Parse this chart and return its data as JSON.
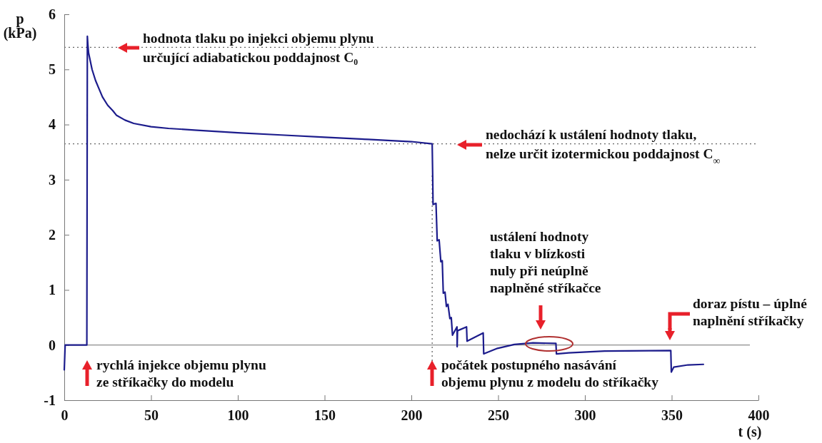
{
  "chart_data": {
    "type": "line",
    "xlabel": "t (s)",
    "ylabel": "p\n(kPa)",
    "xlim": [
      0,
      400
    ],
    "xticks": [
      0,
      50,
      100,
      150,
      200,
      250,
      300,
      350,
      400
    ],
    "ylim": [
      -1,
      6
    ],
    "yticks": [
      -1,
      0,
      1,
      2,
      3,
      4,
      5,
      6
    ],
    "grid": false,
    "marker": "none",
    "line_style": "solid",
    "series": [
      {
        "color": "#1c1c8c",
        "x": [
          0,
          0.5,
          13,
          13.3,
          13.6,
          14,
          16,
          18,
          20,
          22,
          25,
          28,
          30,
          35,
          40,
          50,
          60,
          75,
          100,
          125,
          150,
          175,
          200,
          212,
          212.3,
          212.5,
          214.2,
          214.9,
          216,
          217,
          217.8,
          218.4,
          219.4,
          220.2,
          221.1,
          222.2,
          223,
          223.7,
          226.3,
          226.4,
          226.6,
          231.8,
          232.1,
          241.4,
          241.7,
          249.6,
          259.3,
          270,
          283.3,
          283.6,
          290.7,
          311.4,
          349.5,
          349.8,
          351.2,
          359.4,
          368.3
        ],
        "values": [
          -0.45,
          0,
          0,
          5.6,
          5.45,
          5.3,
          5.0,
          4.8,
          4.65,
          4.5,
          4.35,
          4.25,
          4.17,
          4.08,
          4.02,
          3.96,
          3.93,
          3.9,
          3.85,
          3.81,
          3.77,
          3.73,
          3.69,
          3.65,
          3.05,
          2.55,
          2.57,
          1.89,
          1.91,
          1.51,
          1.53,
          0.94,
          0.96,
          0.7,
          0.74,
          0.48,
          0.5,
          0.18,
          0.33,
          -0.03,
          0.26,
          0.33,
          0.07,
          0.22,
          -0.16,
          -0.06,
          0.01,
          0.04,
          0.03,
          -0.16,
          -0.14,
          -0.11,
          -0.1,
          -0.49,
          -0.4,
          -0.36,
          -0.35
        ]
      }
    ],
    "ref_lines": [
      {
        "axis": "y",
        "value": 0,
        "color": "#8c8c8c",
        "line_style": "solid"
      },
      {
        "axis": "y",
        "value": 5.4,
        "color": "#666666",
        "line_style": "dotted"
      },
      {
        "axis": "y",
        "value": 3.65,
        "color": "#666666",
        "line_style": "dotted"
      },
      {
        "axis": "x",
        "value": 212,
        "color": "#666666",
        "line_style": "dotted"
      }
    ],
    "annotations": [
      "hodnota tlaku po injekci objemu plynu\nurčující adiabatickou poddajnost C₀",
      "nedochází k ustálení hodnoty tlaku,\nnelze určit izotermickou poddajnost C$_{∞}$",
      "ustálení hodnoty\ntlaku v blízkosti\nnuly při neúplně\nnaplněné stříkačce",
      "doraz pístu – úplné\nnaplnění stříkačky",
      "rychlá injekce objemu plynu\nze stříkačky do modelu",
      "počátek postupného nasávání\nobjemu plynu z modelu do stříkačky"
    ]
  }
}
